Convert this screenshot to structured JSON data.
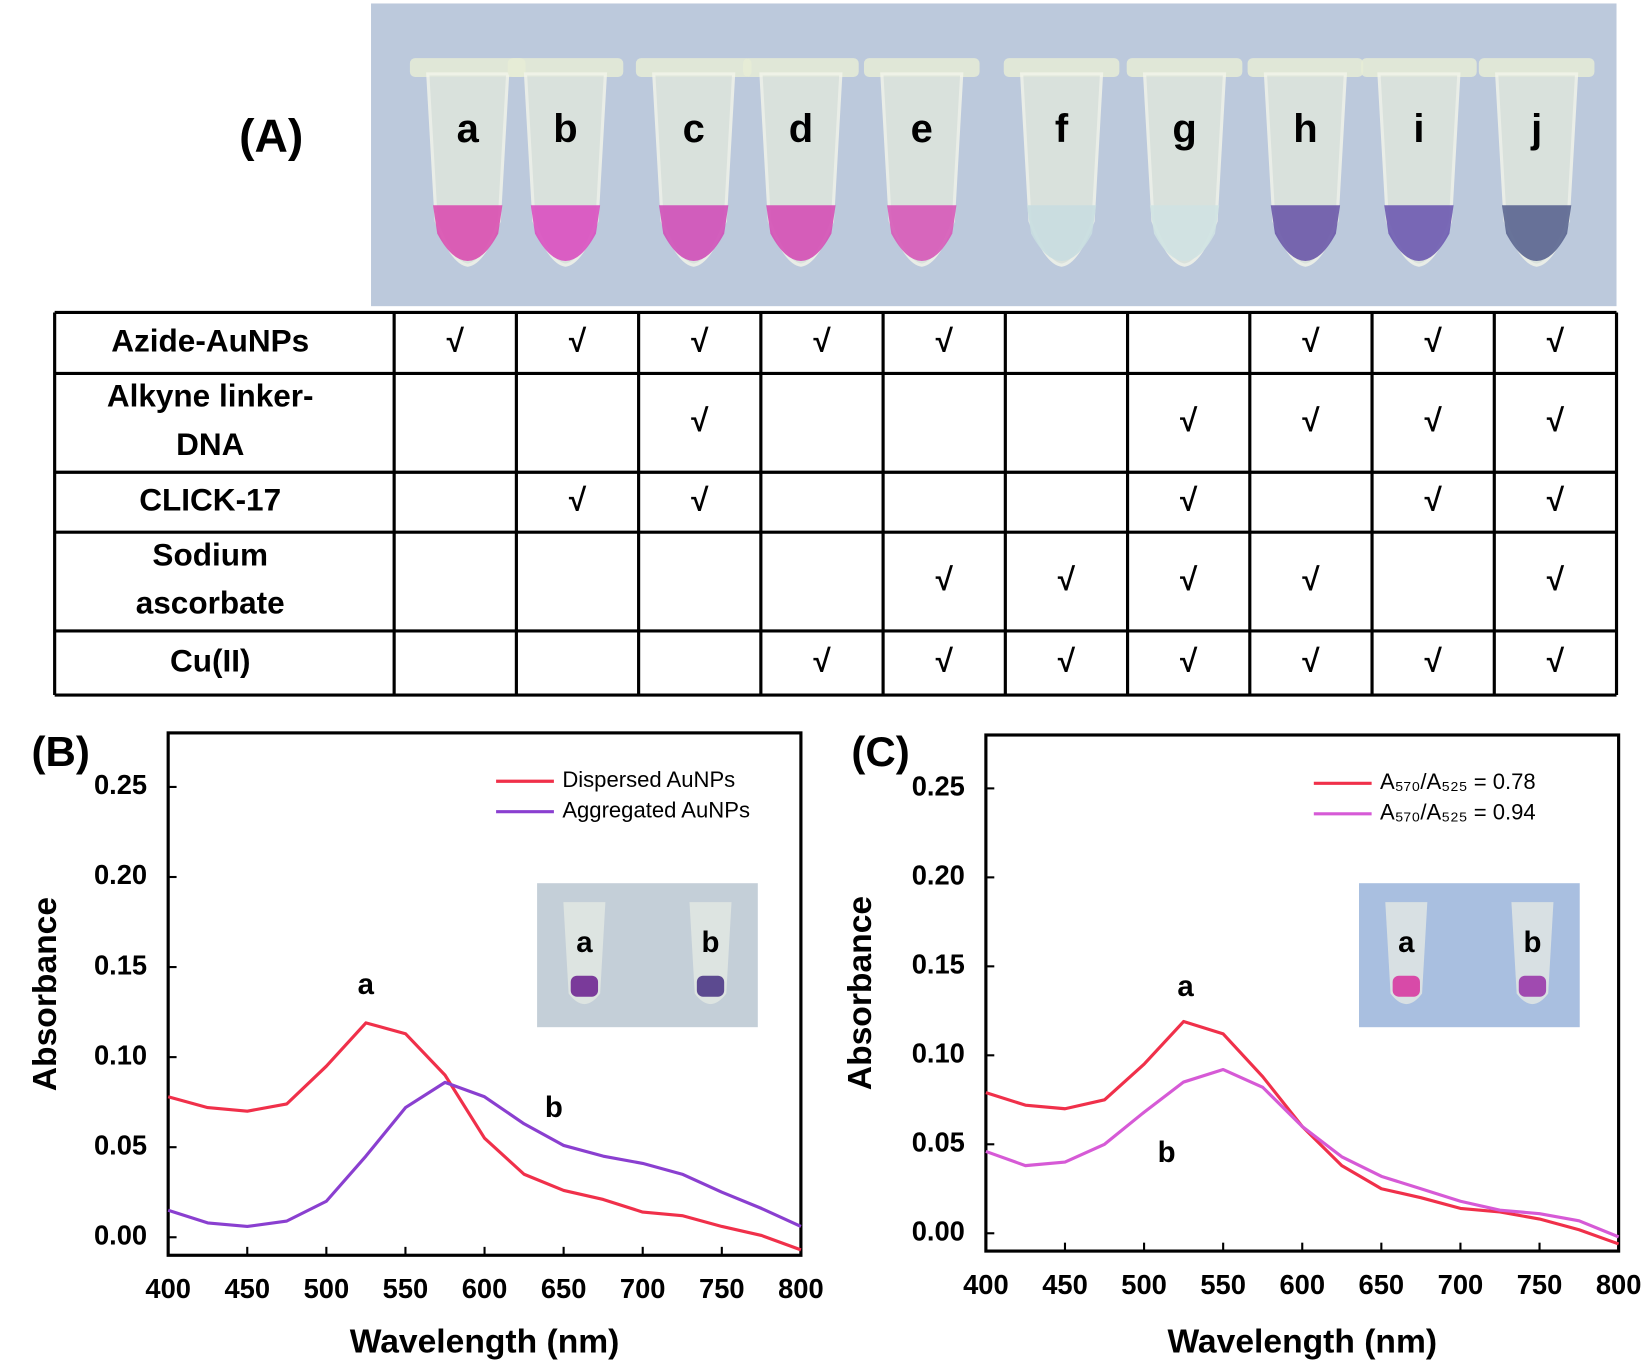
{
  "panel_a": {
    "label": "(A)",
    "tubes": [
      "a",
      "b",
      "c",
      "d",
      "e",
      "f",
      "g",
      "h",
      "i",
      "j"
    ],
    "table": [
      {
        "label": "Azide-AuNPs",
        "cells": [
          "√",
          "√",
          "√",
          "√",
          "√",
          null,
          null,
          "√",
          "√",
          "√"
        ]
      },
      {
        "label": "Alkyne linker-DNA",
        "cells": [
          null,
          null,
          "√",
          null,
          null,
          null,
          "√",
          "√",
          "√",
          "√"
        ]
      },
      {
        "label": "CLICK-17",
        "cells": [
          null,
          "√",
          "√",
          null,
          null,
          null,
          "√",
          null,
          "√",
          "√"
        ]
      },
      {
        "label": "Sodium ascorbate",
        "cells": [
          null,
          null,
          null,
          null,
          "√",
          "√",
          "√",
          "√",
          null,
          "√"
        ]
      },
      {
        "label": "Cu(II)",
        "cells": [
          null,
          null,
          null,
          "√",
          "√",
          "√",
          "√",
          "√",
          "√",
          "√"
        ]
      }
    ]
  },
  "chart_data": [
    {
      "type": "line",
      "panel_label": "(B)",
      "xlabel": "Wavelength (nm)",
      "ylabel": "Absorbance",
      "x": [
        400,
        425,
        450,
        475,
        500,
        525,
        550,
        575,
        600,
        625,
        650,
        675,
        700,
        725,
        750,
        775,
        800
      ],
      "series": [
        {
          "name": "Dispersed AuNPs",
          "color": "#f0304a",
          "values": [
            0.078,
            0.072,
            0.07,
            0.074,
            0.095,
            0.119,
            0.113,
            0.09,
            0.055,
            0.035,
            0.026,
            0.021,
            0.014,
            0.012,
            0.006,
            0.001,
            -0.007
          ]
        },
        {
          "name": "Aggregated AuNPs",
          "color": "#8a3fd0",
          "values": [
            0.015,
            0.008,
            0.006,
            0.009,
            0.02,
            0.045,
            0.072,
            0.086,
            0.078,
            0.063,
            0.051,
            0.045,
            0.041,
            0.035,
            0.025,
            0.016,
            0.006
          ]
        }
      ],
      "annotations": [
        "a",
        "b"
      ],
      "inset_labels": [
        "a",
        "b"
      ],
      "xlim": [
        400,
        800
      ],
      "ylim": [
        -0.01,
        0.28
      ],
      "xticks": [
        400,
        450,
        500,
        550,
        600,
        650,
        700,
        750,
        800
      ],
      "yticks": [
        {
          "value": 0,
          "label": "0.00"
        },
        {
          "value": 0.05,
          "label": "0.05"
        },
        {
          "value": 0.1,
          "label": "0.10"
        },
        {
          "value": 0.15,
          "label": "0.15"
        },
        {
          "value": 0.2,
          "label": "0.20"
        },
        {
          "value": 0.25,
          "label": "0.25"
        }
      ],
      "legend": "upper right"
    },
    {
      "type": "line",
      "panel_label": "(C)",
      "xlabel": "Wavelength (nm)",
      "ylabel": "Absorbance",
      "x": [
        400,
        425,
        450,
        475,
        500,
        525,
        550,
        575,
        600,
        625,
        650,
        675,
        700,
        725,
        750,
        775,
        800
      ],
      "series": [
        {
          "name": "A₅₇₀/A₅₂₅ = 0.78",
          "color": "#f0304a",
          "values": [
            0.079,
            0.072,
            0.07,
            0.075,
            0.095,
            0.119,
            0.112,
            0.088,
            0.06,
            0.038,
            0.025,
            0.02,
            0.014,
            0.012,
            0.008,
            0.002,
            -0.006
          ]
        },
        {
          "name": "A₅₇₀/A₅₂₅ = 0.94",
          "color": "#d65ad6",
          "values": [
            0.046,
            0.038,
            0.04,
            0.05,
            0.068,
            0.085,
            0.092,
            0.082,
            0.06,
            0.043,
            0.032,
            0.025,
            0.018,
            0.013,
            0.011,
            0.007,
            -0.002
          ]
        }
      ],
      "annotations": [
        "a",
        "b"
      ],
      "inset_labels": [
        "a",
        "b"
      ],
      "xlim": [
        400,
        800
      ],
      "ylim": [
        -0.01,
        0.28
      ],
      "xticks": [
        400,
        450,
        500,
        550,
        600,
        650,
        700,
        750,
        800
      ],
      "yticks": [
        {
          "value": 0,
          "label": "0.00"
        },
        {
          "value": 0.05,
          "label": "0.05"
        },
        {
          "value": 0.1,
          "label": "0.10"
        },
        {
          "value": 0.15,
          "label": "0.15"
        },
        {
          "value": 0.2,
          "label": "0.20"
        },
        {
          "value": 0.25,
          "label": "0.25"
        }
      ],
      "legend": "upper right"
    }
  ]
}
